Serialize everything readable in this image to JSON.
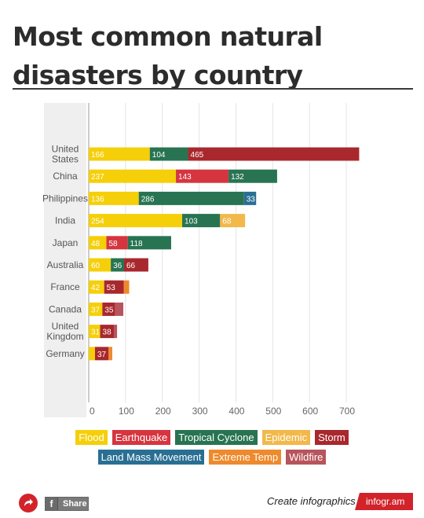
{
  "header": {
    "title": "Most common natural disasters by country"
  },
  "chart_data": {
    "type": "bar",
    "orientation": "horizontal",
    "stacked": true,
    "categories": [
      "United States",
      "China",
      "Philippines",
      "India",
      "Japan",
      "Australia",
      "France",
      "Canada",
      "United Kingdom",
      "Germany"
    ],
    "category_lines": [
      [
        "United",
        "States"
      ],
      [
        "China"
      ],
      [
        "Philippines"
      ],
      [
        "India"
      ],
      [
        "Japan"
      ],
      [
        "Australia"
      ],
      [
        "France"
      ],
      [
        "Canada"
      ],
      [
        "United",
        "Kingdom"
      ],
      [
        "Germany"
      ]
    ],
    "xlim": [
      0,
      700
    ],
    "x_ticks": [
      0,
      100,
      200,
      300,
      400,
      500,
      600,
      700
    ],
    "grid": true,
    "legend_position": "bottom",
    "series": [
      {
        "name": "Flood",
        "color": "#f5cf09",
        "values": [
          166,
          237,
          136,
          254,
          48,
          60,
          42,
          37,
          31,
          17
        ]
      },
      {
        "name": "Earthquake",
        "color": "#d63540",
        "values": [
          0,
          143,
          0,
          0,
          58,
          0,
          0,
          0,
          0,
          0
        ]
      },
      {
        "name": "Tropical Cyclone",
        "color": "#287452",
        "values": [
          104,
          132,
          286,
          103,
          118,
          36,
          0,
          0,
          0,
          0
        ]
      },
      {
        "name": "Epidemic",
        "color": "#f2b84a",
        "values": [
          0,
          0,
          0,
          68,
          0,
          0,
          0,
          0,
          0,
          0
        ]
      },
      {
        "name": "Storm",
        "color": "#a8282d",
        "values": [
          465,
          0,
          0,
          0,
          0,
          66,
          53,
          35,
          38,
          37
        ]
      },
      {
        "name": "Land Mass Movement",
        "color": "#2a6f93",
        "values": [
          0,
          0,
          33,
          0,
          0,
          0,
          0,
          0,
          0,
          0
        ]
      },
      {
        "name": "Extreme Temp",
        "color": "#ee8a2e",
        "values": [
          0,
          0,
          0,
          0,
          0,
          0,
          15,
          0,
          0,
          10
        ]
      },
      {
        "name": "Wildfire",
        "color": "#b8545c",
        "values": [
          0,
          0,
          0,
          0,
          0,
          0,
          0,
          22,
          8,
          0
        ]
      }
    ],
    "labeled_threshold": 28
  },
  "legend_rows": [
    [
      "Flood",
      "Earthquake",
      "Tropical Cyclone",
      "Epidemic",
      "Storm"
    ],
    [
      "Land Mass Movement",
      "Extreme Temp",
      "Wildfire"
    ]
  ],
  "footer": {
    "share_label": "Share",
    "facebook_glyph": "f",
    "create_text": "Create infographics",
    "brand": "infogr.am",
    "share_icon": "share-arrow-icon"
  }
}
